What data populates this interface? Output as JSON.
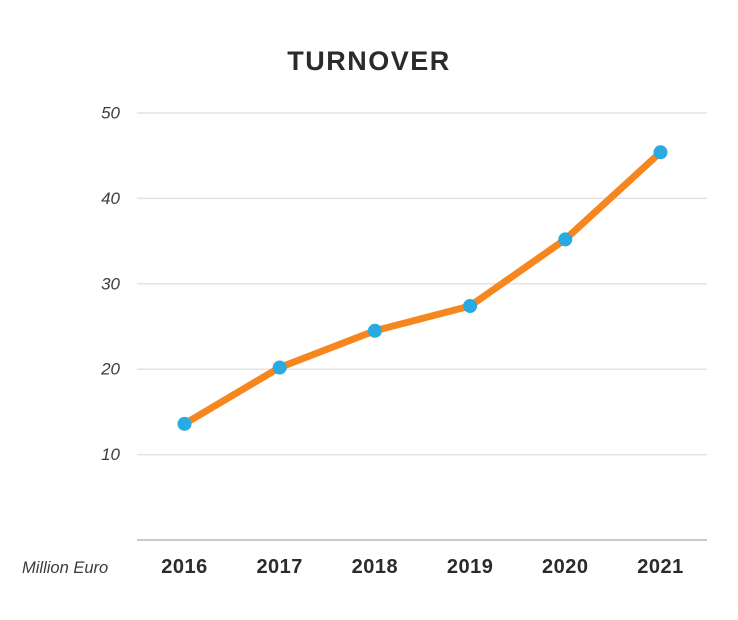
{
  "chart_data": {
    "type": "line",
    "title": "TURNOVER",
    "unit_label": "Million Euro",
    "categories": [
      "2016",
      "2017",
      "2018",
      "2019",
      "2020",
      "2021"
    ],
    "series": [
      {
        "name": "Turnover",
        "values": [
          13.6,
          20.2,
          24.5,
          27.4,
          35.2,
          45.4
        ]
      }
    ],
    "xlabel": "",
    "ylabel": "",
    "ylim": [
      0,
      50
    ],
    "yticks": [
      10,
      20,
      30,
      40,
      50
    ],
    "grid": true,
    "legend": false,
    "colors": {
      "line": "#F6871F",
      "marker": "#29ABE2",
      "grid": "#E3E3E3",
      "axis": "#C8C8C8",
      "title_text": "#2B2B2B",
      "tick_text": "#3D3D3D"
    }
  }
}
